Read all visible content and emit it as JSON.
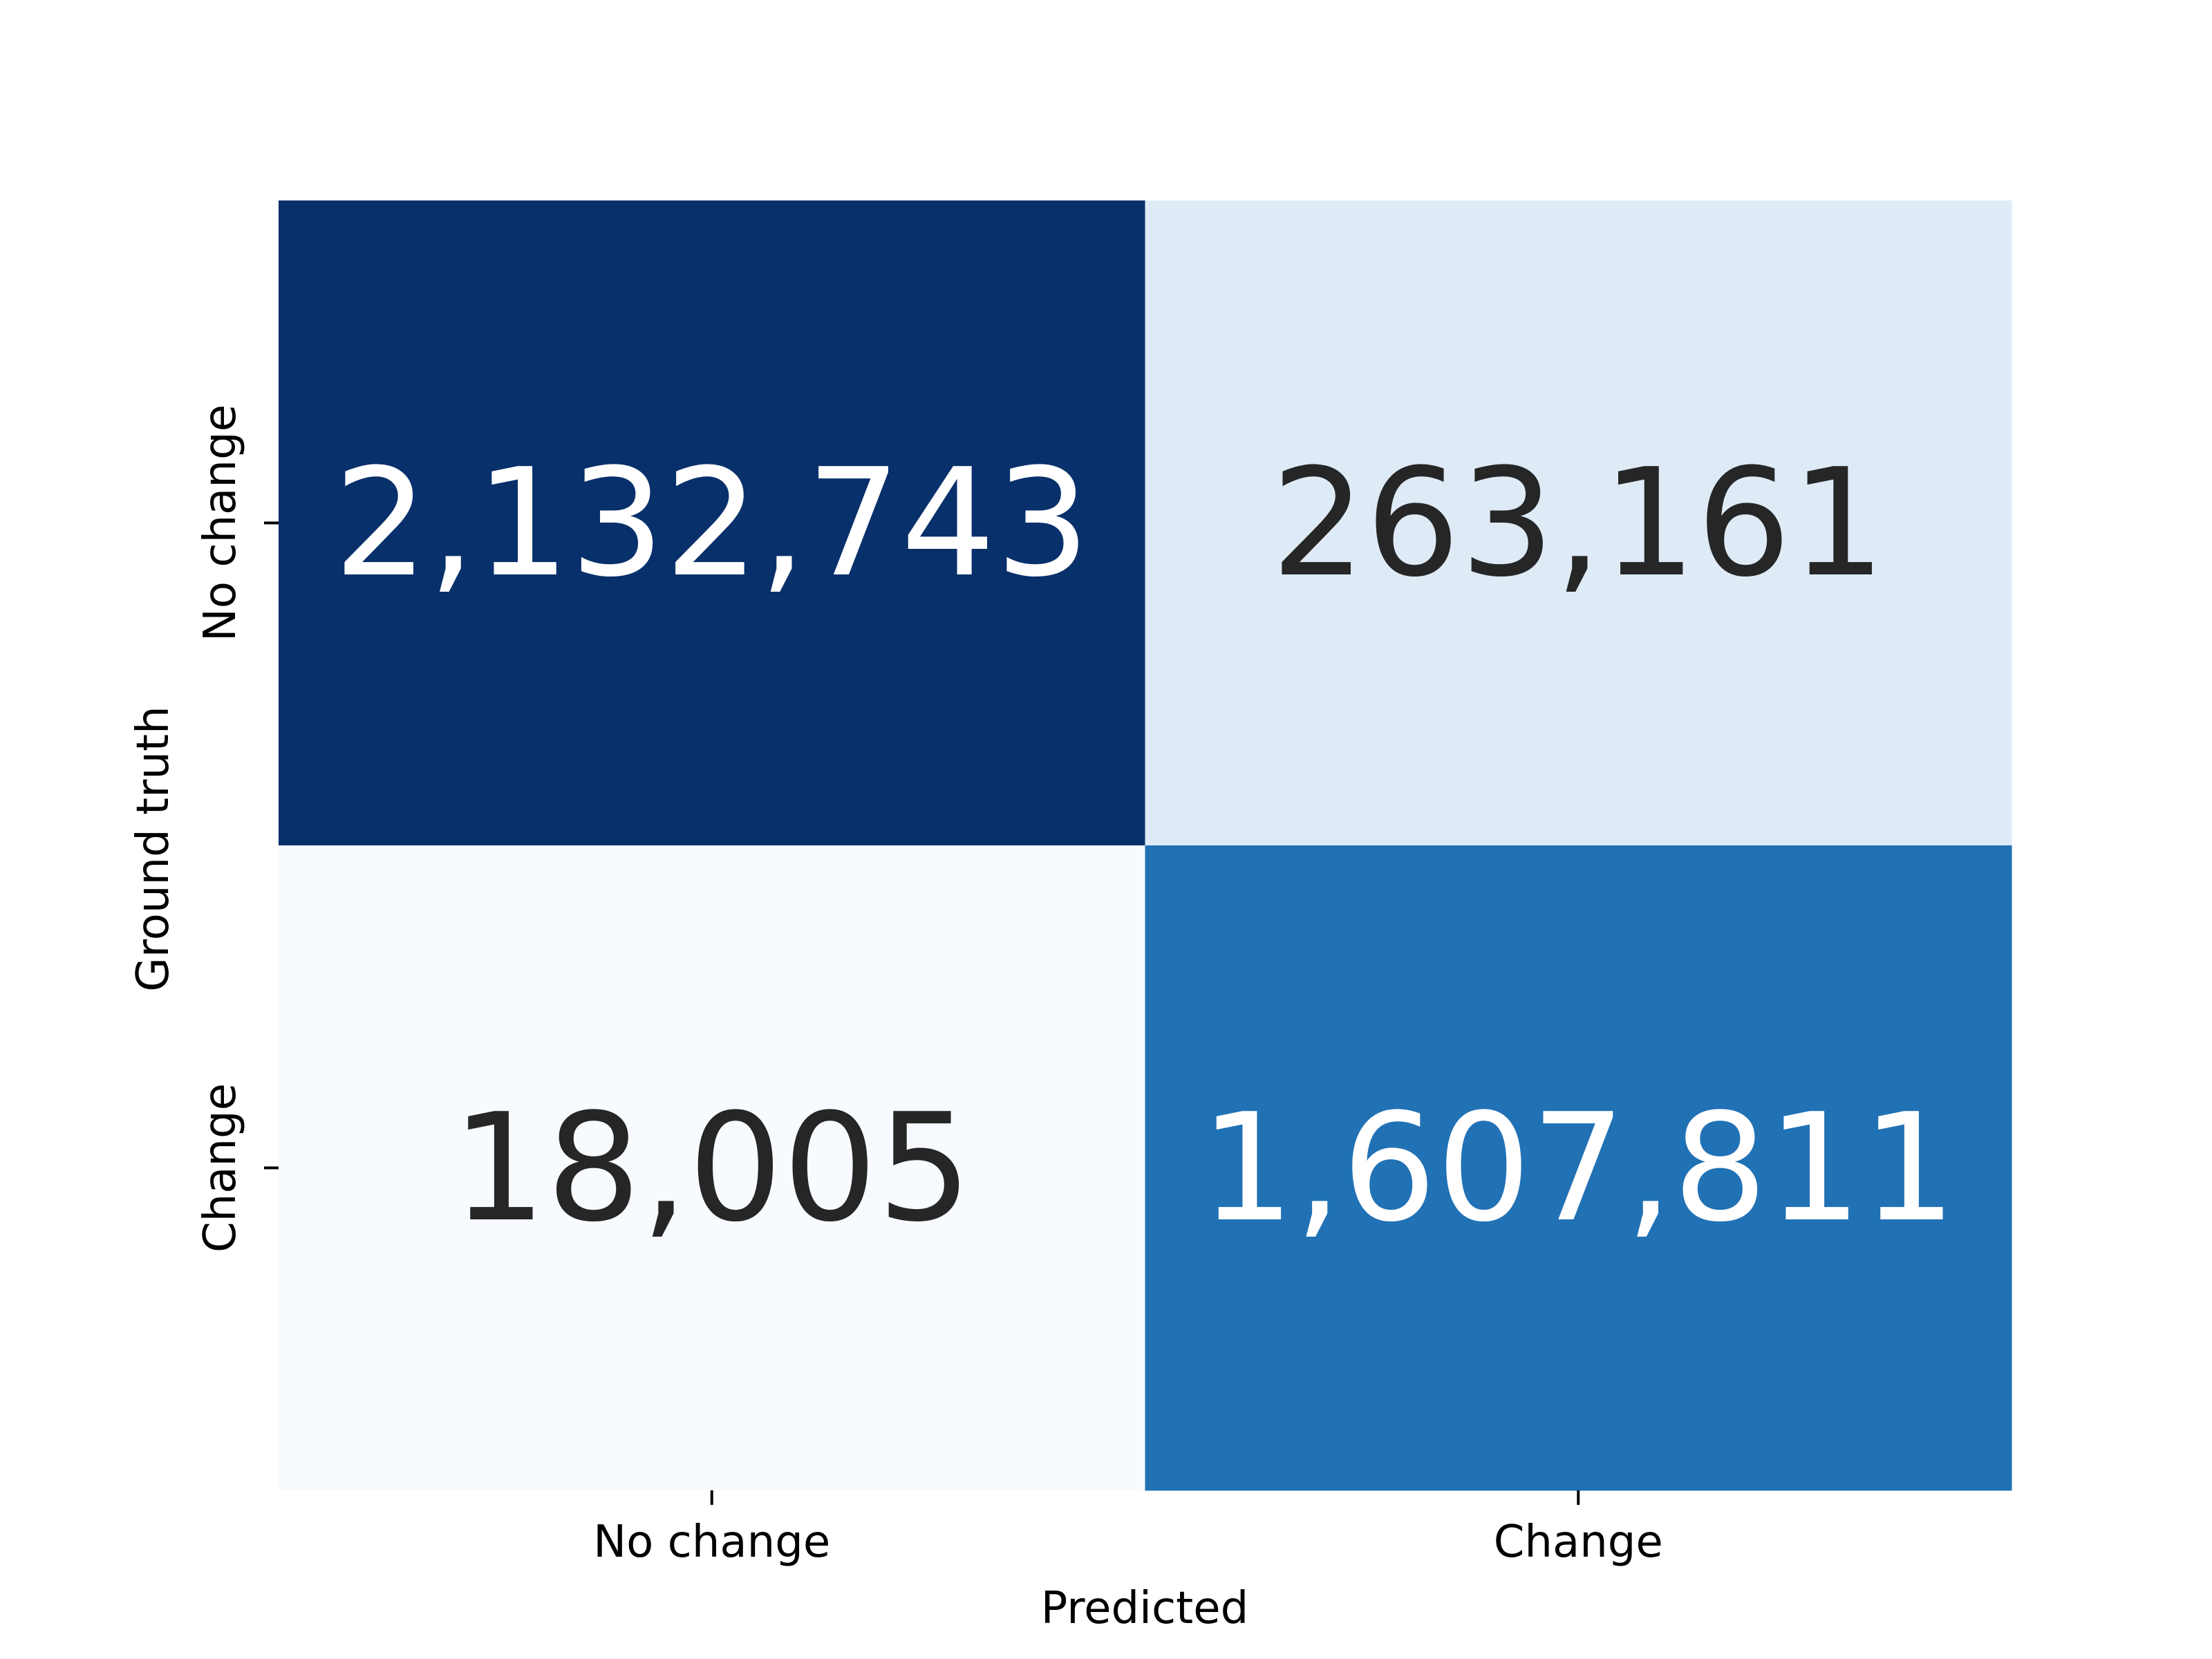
{
  "chart_data": {
    "type": "heatmap",
    "title": "",
    "xlabel": "Predicted",
    "ylabel": "Ground truth",
    "x_categories": [
      "No change",
      "Change"
    ],
    "y_categories": [
      "No change",
      "Change"
    ],
    "values": [
      [
        2132743,
        263161
      ],
      [
        18005,
        1607811
      ]
    ],
    "cell_labels": [
      [
        "2,132,743",
        "263,161"
      ],
      [
        "18,005",
        "1,607,811"
      ]
    ],
    "colormap": "Blues",
    "cell_colors": [
      [
        "#08306b",
        "#deebf7"
      ],
      [
        "#f7fbff",
        "#2171b5"
      ]
    ],
    "cell_text_colors": [
      [
        "#ffffff",
        "#262626"
      ],
      [
        "#262626",
        "#ffffff"
      ]
    ],
    "colorbar": false,
    "grid": false
  }
}
